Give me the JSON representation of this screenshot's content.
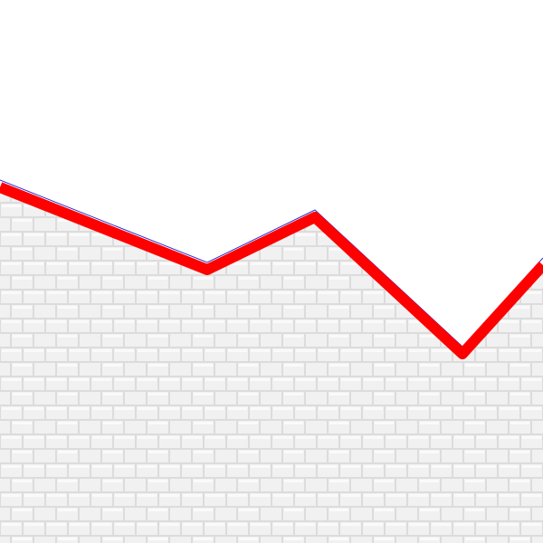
{
  "colors": {
    "sky": "#ffffff",
    "brick_face": "#f1f1f1",
    "brick_mortar": "#dcdcdc",
    "brick_highlight": "#fafafa",
    "track": "#ff0000",
    "outline": "#2b2bd9"
  },
  "terrain": {
    "surface": "brick-wall",
    "track_style": "thick-red-line"
  }
}
